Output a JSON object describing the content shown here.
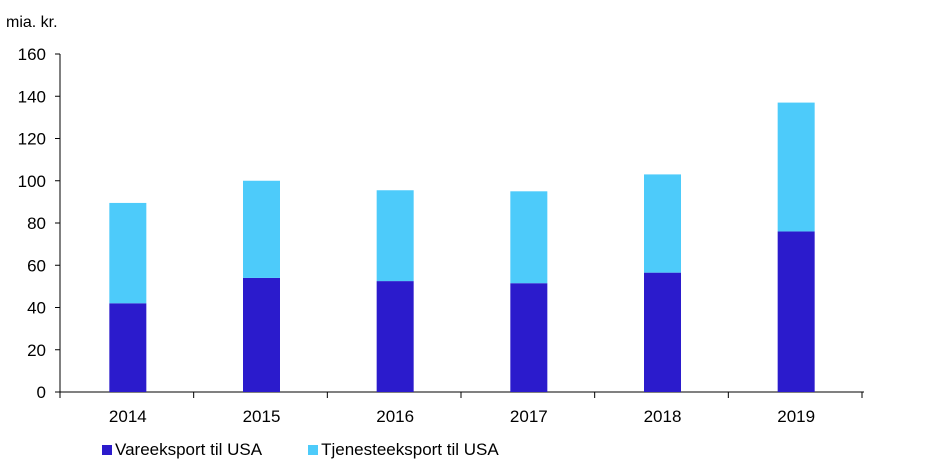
{
  "chart_data": {
    "type": "bar",
    "stacked": true,
    "ylabel": "mia. kr.",
    "ylim": [
      0,
      160
    ],
    "yticks": [
      0,
      20,
      40,
      60,
      80,
      100,
      120,
      140,
      160
    ],
    "categories": [
      "2014",
      "2015",
      "2016",
      "2017",
      "2018",
      "2019"
    ],
    "series": [
      {
        "name": "Vareeksport til USA",
        "color": "#2b1bcc",
        "values": [
          42,
          54,
          52.5,
          51.5,
          56.5,
          76
        ]
      },
      {
        "name": "Tjenesteeksport til USA",
        "color": "#4dcbfa",
        "values": [
          47.5,
          46,
          43,
          43.5,
          46.5,
          61
        ]
      }
    ],
    "grid": false,
    "legend_position": "bottom-left"
  }
}
